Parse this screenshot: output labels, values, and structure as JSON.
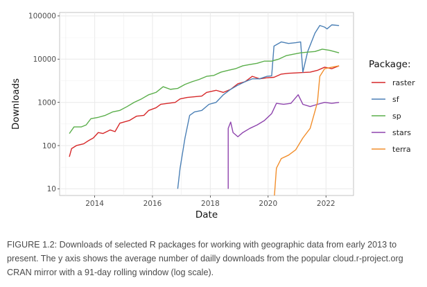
{
  "chart_data": {
    "type": "line",
    "title": "",
    "xlabel": "Date",
    "ylabel": "Downloads",
    "y_scale": "log10",
    "ylim": [
      7,
      120000
    ],
    "xlim": [
      "2012-10-15",
      "2022-12-15"
    ],
    "x_ticks": [
      "2014",
      "2016",
      "2018",
      "2020",
      "2022"
    ],
    "y_ticks": [
      "10",
      "100",
      "1000",
      "10000",
      "100000"
    ],
    "grid": true,
    "legend": {
      "title": "Package:",
      "placement": "right"
    },
    "series": [
      {
        "name": "raster",
        "color": "#d62728",
        "points": [
          [
            "2013-02",
            55
          ],
          [
            "2013-03",
            85
          ],
          [
            "2013-05",
            100
          ],
          [
            "2013-08",
            110
          ],
          [
            "2013-10",
            130
          ],
          [
            "2013-12",
            150
          ],
          [
            "2014-02",
            200
          ],
          [
            "2014-04",
            190
          ],
          [
            "2014-07",
            230
          ],
          [
            "2014-09",
            210
          ],
          [
            "2014-11",
            330
          ],
          [
            "2015-03",
            380
          ],
          [
            "2015-06",
            480
          ],
          [
            "2015-09",
            500
          ],
          [
            "2015-11",
            650
          ],
          [
            "2016-02",
            750
          ],
          [
            "2016-04",
            900
          ],
          [
            "2016-07",
            950
          ],
          [
            "2016-10",
            1000
          ],
          [
            "2016-12",
            1200
          ],
          [
            "2017-03",
            1300
          ],
          [
            "2017-06",
            1350
          ],
          [
            "2017-09",
            1400
          ],
          [
            "2017-11",
            1700
          ],
          [
            "2018-03",
            1900
          ],
          [
            "2018-06",
            1700
          ],
          [
            "2018-09",
            2000
          ],
          [
            "2018-12",
            2700
          ],
          [
            "2019-03",
            3000
          ],
          [
            "2019-06",
            4000
          ],
          [
            "2019-09",
            3500
          ],
          [
            "2019-12",
            3700
          ],
          [
            "2020-03",
            3800
          ],
          [
            "2020-06",
            4500
          ],
          [
            "2020-09",
            4700
          ],
          [
            "2020-12",
            4800
          ],
          [
            "2021-03",
            4900
          ],
          [
            "2021-06",
            5000
          ],
          [
            "2021-09",
            5500
          ],
          [
            "2021-12",
            6500
          ],
          [
            "2022-03",
            6000
          ],
          [
            "2022-06",
            7000
          ]
        ]
      },
      {
        "name": "sf",
        "color": "#4a7fb5",
        "points": [
          [
            "2016-11",
            10
          ],
          [
            "2016-12",
            30
          ],
          [
            "2017-02",
            150
          ],
          [
            "2017-04",
            500
          ],
          [
            "2017-06",
            600
          ],
          [
            "2017-09",
            650
          ],
          [
            "2017-12",
            900
          ],
          [
            "2018-03",
            1000
          ],
          [
            "2018-06",
            1500
          ],
          [
            "2018-09",
            2000
          ],
          [
            "2018-12",
            2500
          ],
          [
            "2019-03",
            3000
          ],
          [
            "2019-06",
            3500
          ],
          [
            "2019-09",
            3500
          ],
          [
            "2019-12",
            4000
          ],
          [
            "2020-02",
            4100
          ],
          [
            "2020-03",
            20000
          ],
          [
            "2020-06",
            25000
          ],
          [
            "2020-09",
            23000
          ],
          [
            "2020-12",
            24000
          ],
          [
            "2021-02",
            25000
          ],
          [
            "2021-03",
            5000
          ],
          [
            "2021-05",
            15000
          ],
          [
            "2021-08",
            40000
          ],
          [
            "2021-10",
            60000
          ],
          [
            "2021-12",
            55000
          ],
          [
            "2022-01",
            50000
          ],
          [
            "2022-03",
            62000
          ],
          [
            "2022-06",
            60000
          ]
        ]
      },
      {
        "name": "sp",
        "color": "#5aae4a",
        "points": [
          [
            "2013-02",
            190
          ],
          [
            "2013-04",
            270
          ],
          [
            "2013-07",
            270
          ],
          [
            "2013-09",
            300
          ],
          [
            "2013-11",
            420
          ],
          [
            "2014-02",
            450
          ],
          [
            "2014-05",
            500
          ],
          [
            "2014-08",
            600
          ],
          [
            "2014-11",
            650
          ],
          [
            "2015-02",
            800
          ],
          [
            "2015-05",
            1000
          ],
          [
            "2015-08",
            1200
          ],
          [
            "2015-11",
            1500
          ],
          [
            "2016-02",
            1700
          ],
          [
            "2016-05",
            2300
          ],
          [
            "2016-08",
            2000
          ],
          [
            "2016-11",
            2100
          ],
          [
            "2017-02",
            2600
          ],
          [
            "2017-05",
            3000
          ],
          [
            "2017-08",
            3400
          ],
          [
            "2017-11",
            4000
          ],
          [
            "2018-02",
            4200
          ],
          [
            "2018-05",
            5000
          ],
          [
            "2018-08",
            5500
          ],
          [
            "2018-11",
            6000
          ],
          [
            "2019-02",
            7000
          ],
          [
            "2019-05",
            7500
          ],
          [
            "2019-08",
            8000
          ],
          [
            "2019-11",
            9000
          ],
          [
            "2020-02",
            9000
          ],
          [
            "2020-05",
            10000
          ],
          [
            "2020-08",
            12000
          ],
          [
            "2020-11",
            13000
          ],
          [
            "2021-02",
            14000
          ],
          [
            "2021-05",
            14500
          ],
          [
            "2021-08",
            15000
          ],
          [
            "2021-11",
            17000
          ],
          [
            "2022-02",
            16000
          ],
          [
            "2022-06",
            14000
          ]
        ]
      },
      {
        "name": "stars",
        "color": "#8e44ad",
        "points": [
          [
            "2018-08",
            10
          ],
          [
            "2018-08",
            250
          ],
          [
            "2018-09",
            350
          ],
          [
            "2018-10",
            200
          ],
          [
            "2018-12",
            160
          ],
          [
            "2019-02",
            200
          ],
          [
            "2019-05",
            250
          ],
          [
            "2019-08",
            300
          ],
          [
            "2019-11",
            380
          ],
          [
            "2020-02",
            550
          ],
          [
            "2020-04",
            950
          ],
          [
            "2020-07",
            900
          ],
          [
            "2020-10",
            950
          ],
          [
            "2021-01",
            1500
          ],
          [
            "2021-03",
            900
          ],
          [
            "2021-06",
            800
          ],
          [
            "2021-09",
            900
          ],
          [
            "2021-12",
            1000
          ],
          [
            "2022-03",
            950
          ],
          [
            "2022-06",
            1000
          ]
        ]
      },
      {
        "name": "terra",
        "color": "#f28e2b",
        "points": [
          [
            "2020-03",
            5
          ],
          [
            "2020-04",
            30
          ],
          [
            "2020-06",
            50
          ],
          [
            "2020-09",
            60
          ],
          [
            "2020-12",
            80
          ],
          [
            "2021-03",
            150
          ],
          [
            "2021-06",
            250
          ],
          [
            "2021-09",
            1000
          ],
          [
            "2021-10",
            4000
          ],
          [
            "2021-12",
            6000
          ],
          [
            "2022-03",
            6500
          ],
          [
            "2022-06",
            7000
          ]
        ]
      }
    ]
  },
  "caption": "FIGURE 1.2: Downloads of selected R packages for working with geographic data from early 2013 to present. The y axis shows the average number of dailly downloads from the popular cloud.r-project.org CRAN mirror with a 91-day rolling window (log scale)."
}
